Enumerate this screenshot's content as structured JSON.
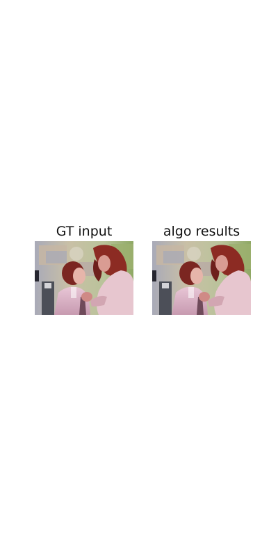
{
  "panels": [
    {
      "title": "GT input"
    },
    {
      "title": "algo results"
    }
  ]
}
